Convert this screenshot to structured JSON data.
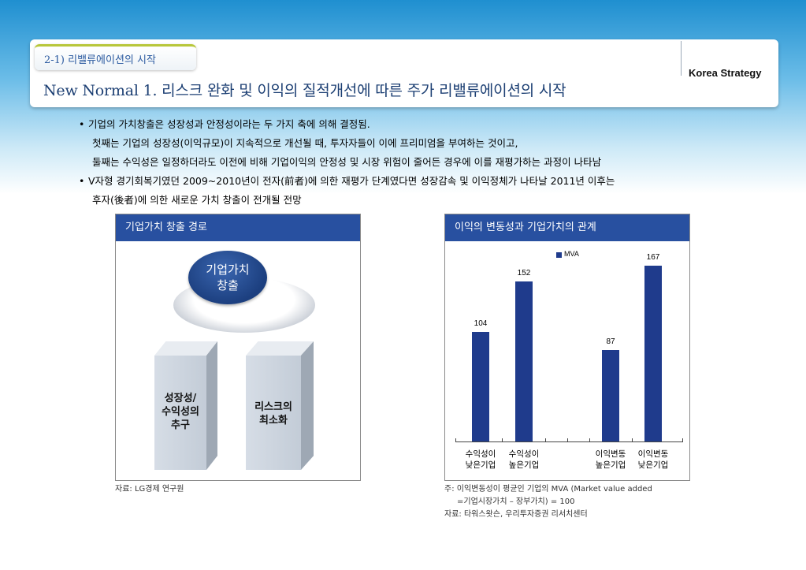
{
  "header": {
    "section": "2-1) 리밸류에이션의 시작",
    "brand": "Korea Strategy",
    "title": "New Normal 1. 리스크 완화 및 이익의 질적개선에 따른 주가 리밸류에이션의 시작"
  },
  "bullets": [
    "기업의 가치창출은 성장성과 안정성이라는 두 가지 축에 의해 결정됨.",
    "첫째는 기업의 성장성(이익규모)이 지속적으로 개선될 때, 투자자들이 이에 프리미엄을 부여하는 것이고,",
    "둘째는 수익성은 일정하더라도 이전에 비해 기업이익의 안정성 및 시장 위험이 줄어든 경우에 이를 재평가하는 과정이 나타남",
    "V자형 경기회복기였던 2009~2010년이 전자(前者)에 의한 재평가 단계였다면 성장감속 및 이익정체가 나타날 2011년 이후는",
    "후자(後者)에 의한 새로운 가치 창출이 전개될 전망"
  ],
  "left_panel": {
    "title": "기업가치 창출 경로",
    "oval_line1": "기업가치",
    "oval_line2": "창출",
    "pillar1_line1": "성장성/",
    "pillar1_line2": "수익성의",
    "pillar1_line3": "추구",
    "pillar2_line1": "리스크의",
    "pillar2_line2": "최소화",
    "source": "자료: LG경제 연구원"
  },
  "right_panel": {
    "title": "이익의 변동성과 기업가치의 관계",
    "note1": "주: 이익변동성이 평균인 기업의 MVA (Market value added",
    "note2": "=기업시장가치 – 장부가치) = 100",
    "source": "자료: 타워스왓슨, 우리투자증권 리서치센터"
  },
  "chart_data": {
    "type": "bar",
    "categories": [
      "수익성이 낮은기업",
      "수익성이 높은기업",
      "이익변동 높은기업",
      "이익변동 낮은기업"
    ],
    "category_lines": [
      [
        "수익성이",
        "낮은기업"
      ],
      [
        "수익성이",
        "높은기업"
      ],
      [
        "이익변동",
        "높은기업"
      ],
      [
        "이익변동",
        "낮은기업"
      ]
    ],
    "series": [
      {
        "name": "MVA",
        "values": [
          104,
          152,
          87,
          167
        ]
      }
    ],
    "value_labels": [
      "104",
      "152",
      "87",
      "167"
    ],
    "ylim": [
      0,
      180
    ],
    "legend": "top-center",
    "colors": {
      "bar": "#1f3b8c"
    }
  }
}
